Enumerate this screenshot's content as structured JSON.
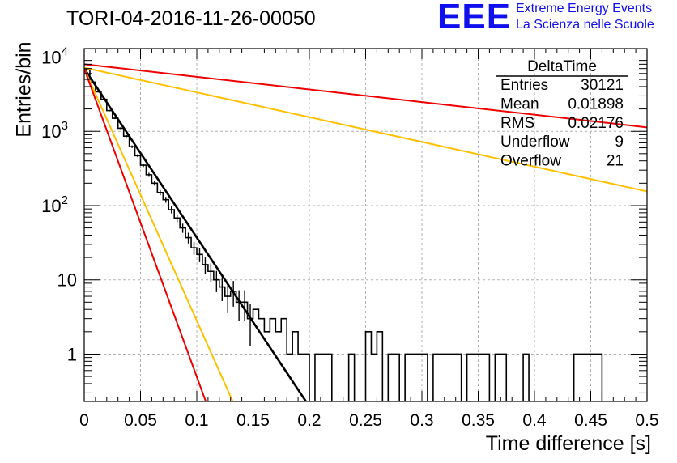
{
  "chart_data": {
    "type": "histogram",
    "title": "TORI-04-2016-11-26-00050",
    "xlabel": "Time difference [s]",
    "ylabel": "Entries/bin",
    "xlim": [
      0,
      0.5
    ],
    "ylim": [
      0.23,
      13000
    ],
    "yscale": "log",
    "grid": true,
    "x_ticks": [
      "0",
      "0.05",
      "0.1",
      "0.15",
      "0.2",
      "0.25",
      "0.3",
      "0.35",
      "0.4",
      "0.45",
      "0.5"
    ],
    "y_ticks": [
      {
        "value": 1,
        "base": "1",
        "exp": ""
      },
      {
        "value": 10,
        "base": "10",
        "exp": ""
      },
      {
        "value": 100,
        "base": "10",
        "exp": "2"
      },
      {
        "value": 1000,
        "base": "10",
        "exp": "3"
      },
      {
        "value": 10000,
        "base": "10",
        "exp": "4"
      }
    ],
    "histogram": {
      "bin_width": 0.005,
      "x_start": 0,
      "values": [
        6800,
        4600,
        3400,
        2700,
        1900,
        1500,
        1100,
        860,
        620,
        470,
        350,
        260,
        200,
        150,
        120,
        88,
        68,
        50,
        37,
        27,
        22,
        16,
        13,
        10,
        8,
        6,
        7,
        5,
        5,
        3,
        4,
        3,
        2,
        3,
        2,
        3,
        1,
        2,
        1,
        1,
        0,
        1,
        1,
        1,
        0,
        0,
        0,
        1,
        0,
        0,
        2,
        1,
        2,
        0,
        1,
        1,
        0,
        1,
        1,
        1,
        1,
        0,
        1,
        1,
        1,
        1,
        1,
        0,
        1,
        1,
        1,
        1,
        0,
        1,
        1,
        0,
        0,
        0,
        1,
        0,
        0,
        0,
        0,
        0,
        0,
        0,
        0,
        1,
        1,
        1,
        1,
        1,
        0,
        0,
        0,
        0,
        0,
        0,
        0,
        0
      ]
    },
    "fit_lines": [
      {
        "color": "#000000",
        "y_at_0": 7000,
        "x_at_ymin": 0.197,
        "y_at_ymin": 0.23
      },
      {
        "color": "#ffc000",
        "y_at_0": 7000,
        "x_at_ymin": 0.132,
        "y_at_ymin": 0.23
      },
      {
        "color": "#ee0000",
        "y_at_0": 7000,
        "x_at_ymin": 0.108,
        "y_at_ymin": 0.23
      },
      {
        "color": "#ffc000",
        "y_at_0": 7200,
        "x_at_end": 0.5,
        "y_at_end": 155
      },
      {
        "color": "#ee0000",
        "y_at_0": 8000,
        "x_at_end": 0.5,
        "y_at_end": 1130
      }
    ],
    "stats_box": {
      "title": "DeltaTime",
      "rows": [
        {
          "label": "Entries",
          "value": "30121"
        },
        {
          "label": "Mean",
          "value": "0.01898"
        },
        {
          "label": "RMS",
          "value": "0.02176"
        },
        {
          "label": "Underflow",
          "value": "9"
        },
        {
          "label": "Overflow",
          "value": "21"
        }
      ]
    }
  },
  "logo": {
    "mark": "EEE",
    "line1": "Extreme Energy Events",
    "line2": "La Scienza nelle Scuole",
    "color": "#1010ee"
  }
}
